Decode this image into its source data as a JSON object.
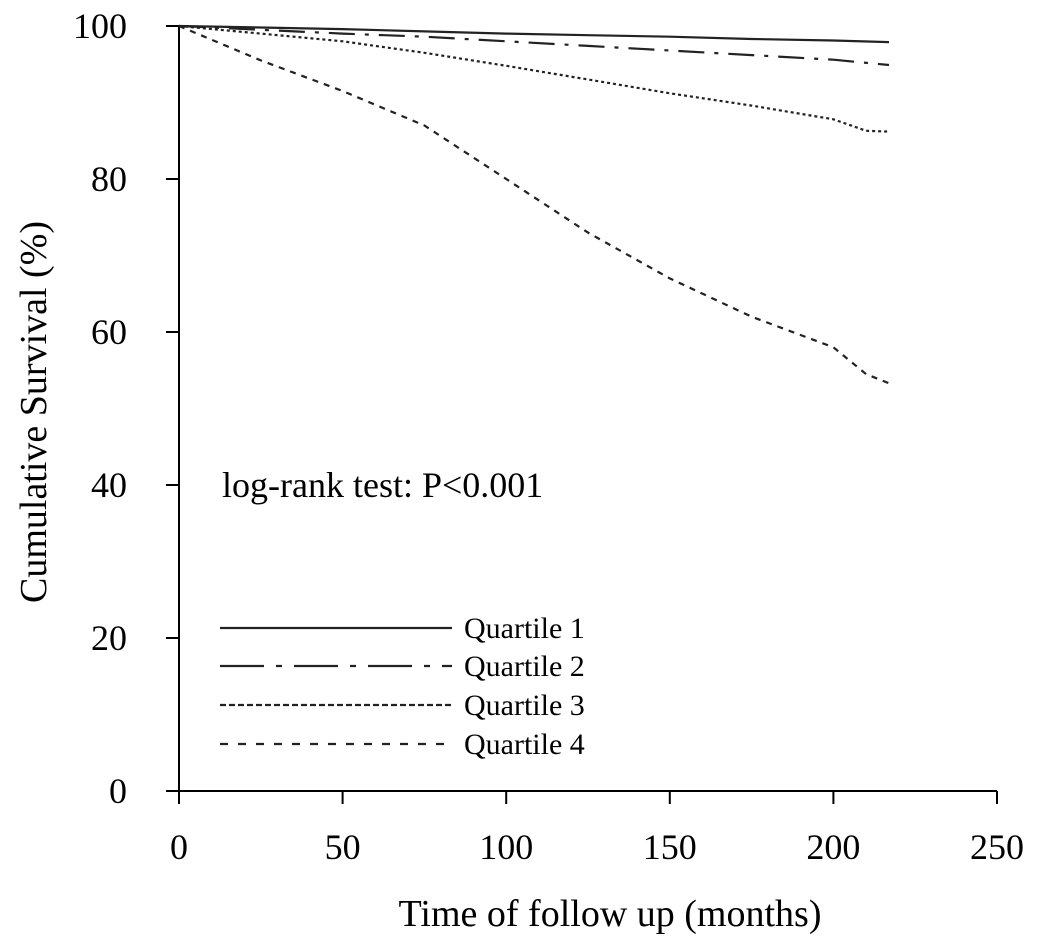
{
  "chart_data": {
    "type": "line",
    "title": "",
    "xlabel": "Time of follow up (months)",
    "ylabel": "Cumulative Survival (%)",
    "xlim": [
      0,
      250
    ],
    "ylim": [
      0,
      100
    ],
    "xticks": [
      0,
      50,
      100,
      150,
      200,
      250
    ],
    "yticks": [
      0,
      20,
      40,
      60,
      80,
      100
    ],
    "xtick_labels": [
      "0",
      "50",
      "100",
      "150",
      "200",
      "250"
    ],
    "ytick_labels": [
      "0",
      "20",
      "40",
      "60",
      "80",
      "100"
    ],
    "grid": false,
    "legend_position": "bottom-left",
    "annotation": "log-rank test: P<0.001",
    "series": [
      {
        "name": "Quartile 1",
        "style": "solid",
        "x": [
          0,
          25,
          50,
          75,
          100,
          125,
          150,
          175,
          200,
          217
        ],
        "y": [
          100,
          99.8,
          99.6,
          99.3,
          99.0,
          98.8,
          98.6,
          98.3,
          98.1,
          97.9
        ]
      },
      {
        "name": "Quartile 2",
        "style": "dash-dot",
        "x": [
          0,
          25,
          50,
          75,
          100,
          125,
          150,
          175,
          200,
          217
        ],
        "y": [
          100,
          99.5,
          99.0,
          98.6,
          98.0,
          97.4,
          96.8,
          96.2,
          95.6,
          94.9
        ]
      },
      {
        "name": "Quartile 3",
        "style": "dotted",
        "x": [
          0,
          25,
          50,
          75,
          100,
          125,
          150,
          175,
          200,
          210,
          217
        ],
        "y": [
          100,
          99.0,
          98.0,
          96.5,
          94.8,
          93.0,
          91.2,
          89.6,
          87.8,
          86.3,
          86.2
        ]
      },
      {
        "name": "Quartile 4",
        "style": "dashed",
        "x": [
          0,
          25,
          50,
          75,
          100,
          125,
          150,
          175,
          200,
          210,
          217
        ],
        "y": [
          100,
          95.5,
          91.5,
          87.0,
          80.0,
          73.0,
          67.0,
          62.0,
          58.0,
          54.5,
          53.3
        ]
      }
    ]
  }
}
